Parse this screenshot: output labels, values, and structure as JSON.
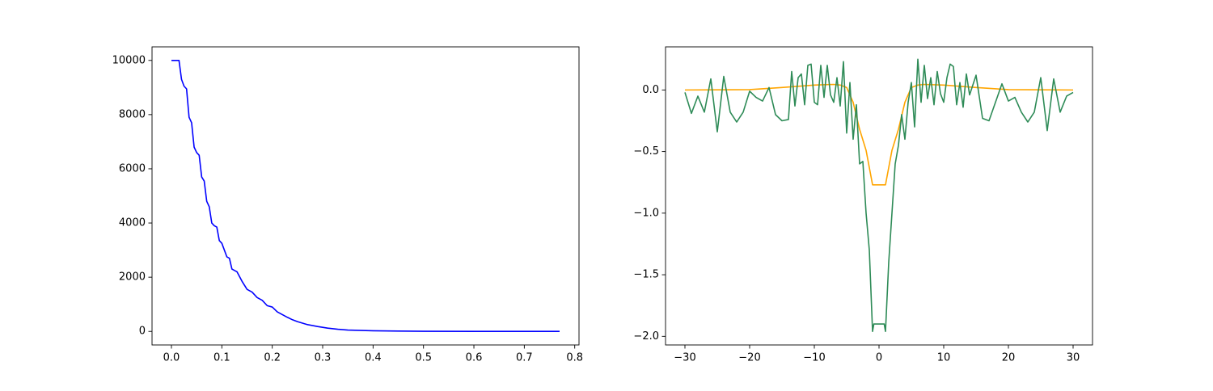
{
  "chart_data": [
    {
      "type": "line",
      "xlim": [
        -0.0385,
        0.8085
      ],
      "xticks": [
        {
          "value": 0,
          "label": "0.0"
        },
        0.1,
        0.2,
        0.3,
        0.4,
        0.5,
        0.6,
        0.7,
        0.8
      ],
      "ylim": [
        -500,
        10500
      ],
      "yticks": [
        0,
        2000,
        4000,
        6000,
        8000,
        10000
      ],
      "series": [
        {
          "color": "#0000ff",
          "x": [
            0,
            0.015,
            0.02,
            0.025,
            0.03,
            0.035,
            0.04,
            0.045,
            0.05,
            0.055,
            0.06,
            0.065,
            0.07,
            0.075,
            0.08,
            0.085,
            0.09,
            0.095,
            0.1,
            0.11,
            0.115,
            0.12,
            0.13,
            0.14,
            0.15,
            0.16,
            0.17,
            0.18,
            0.19,
            0.2,
            0.21,
            0.22,
            0.23,
            0.24,
            0.25,
            0.27,
            0.29,
            0.31,
            0.33,
            0.35,
            0.4,
            0.45,
            0.5,
            0.6,
            0.7,
            0.77
          ],
          "values": [
            10000,
            10000,
            9300,
            9050,
            8950,
            7900,
            7700,
            6800,
            6600,
            6500,
            5700,
            5550,
            4800,
            4600,
            4000,
            3900,
            3850,
            3350,
            3250,
            2750,
            2700,
            2300,
            2200,
            1850,
            1550,
            1450,
            1250,
            1150,
            950,
            900,
            720,
            620,
            520,
            430,
            360,
            250,
            180,
            120,
            80,
            50,
            25,
            12,
            6,
            2,
            0,
            0
          ]
        }
      ]
    },
    {
      "type": "line",
      "xlim": [
        -33,
        33
      ],
      "xticks": [
        {
          "value": -30,
          "label": "−30"
        },
        {
          "value": -20,
          "label": "−20"
        },
        {
          "value": -10,
          "label": "−10"
        },
        0,
        10,
        20,
        30
      ],
      "ylim": [
        -2.07,
        0.35
      ],
      "yticks": [
        {
          "value": -2,
          "label": "−2.0"
        },
        {
          "value": -1.5,
          "label": "−1.5"
        },
        {
          "value": -1,
          "label": "−1.0"
        },
        {
          "value": -0.5,
          "label": "−0.5"
        },
        {
          "value": 0,
          "label": "0.0"
        }
      ],
      "series": [
        {
          "color": "#ffa500",
          "x": [
            -30,
            -25,
            -20,
            -15,
            -10,
            -7,
            -6,
            -5,
            -4,
            -3,
            -2,
            -1,
            1,
            2,
            3,
            4,
            5,
            6,
            7,
            10,
            15,
            20,
            25,
            30
          ],
          "values": [
            0,
            0.001,
            0.003,
            0.02,
            0.04,
            0.045,
            0.04,
            0.02,
            -0.1,
            -0.32,
            -0.49,
            -0.77,
            -0.77,
            -0.49,
            -0.32,
            -0.1,
            0.02,
            0.04,
            0.045,
            0.04,
            0.02,
            0.003,
            0.001,
            0
          ]
        },
        {
          "color": "#2e8b57",
          "x": [
            -30,
            -29,
            -28,
            -27,
            -26,
            -25,
            -24,
            -23,
            -22,
            -21,
            -20,
            -19,
            -18,
            -17,
            -16,
            -15,
            -14,
            -13.5,
            -13,
            -12.5,
            -12,
            -11.5,
            -11,
            -10.5,
            -10,
            -9.5,
            -9,
            -8.5,
            -8,
            -7.5,
            -7,
            -6.5,
            -6,
            -5.5,
            -5,
            -4.5,
            -4,
            -3.5,
            -3,
            -2.5,
            -2,
            -1.5,
            -1,
            -0.8,
            0.8,
            1,
            1.5,
            2,
            2.5,
            3,
            3.5,
            4,
            4.5,
            5,
            5.5,
            6,
            6.5,
            7,
            7.5,
            8,
            8.5,
            9,
            9.5,
            10,
            10.5,
            11,
            11.5,
            12,
            12.5,
            13,
            13.5,
            14,
            15,
            16,
            17,
            18,
            19,
            20,
            21,
            22,
            23,
            24,
            25,
            26,
            27,
            28,
            29,
            30
          ],
          "values": [
            -0.02,
            -0.19,
            -0.05,
            -0.18,
            0.09,
            -0.34,
            0.11,
            -0.18,
            -0.26,
            -0.18,
            -0.01,
            -0.06,
            -0.09,
            0.02,
            -0.2,
            -0.25,
            -0.24,
            0.15,
            -0.13,
            0.1,
            0.13,
            -0.12,
            0.2,
            0.21,
            -0.1,
            -0.12,
            0.2,
            -0.06,
            0.2,
            -0.04,
            -0.1,
            0.1,
            -0.13,
            0.23,
            -0.35,
            0.06,
            -0.4,
            -0.12,
            -0.6,
            -0.58,
            -1.0,
            -1.3,
            -1.96,
            -1.9,
            -1.9,
            -1.96,
            -1.4,
            -1.0,
            -0.6,
            -0.45,
            -0.2,
            -0.4,
            -0.1,
            0.06,
            -0.3,
            0.25,
            -0.1,
            0.2,
            -0.07,
            0.1,
            -0.12,
            0.15,
            -0.03,
            -0.1,
            0.1,
            0.21,
            0.19,
            -0.12,
            0.06,
            -0.14,
            0.13,
            -0.04,
            0.12,
            -0.23,
            -0.25,
            -0.1,
            0.05,
            -0.09,
            -0.06,
            -0.18,
            -0.26,
            -0.18,
            0.1,
            -0.33,
            0.09,
            -0.18,
            -0.05,
            -0.02
          ]
        }
      ]
    }
  ]
}
